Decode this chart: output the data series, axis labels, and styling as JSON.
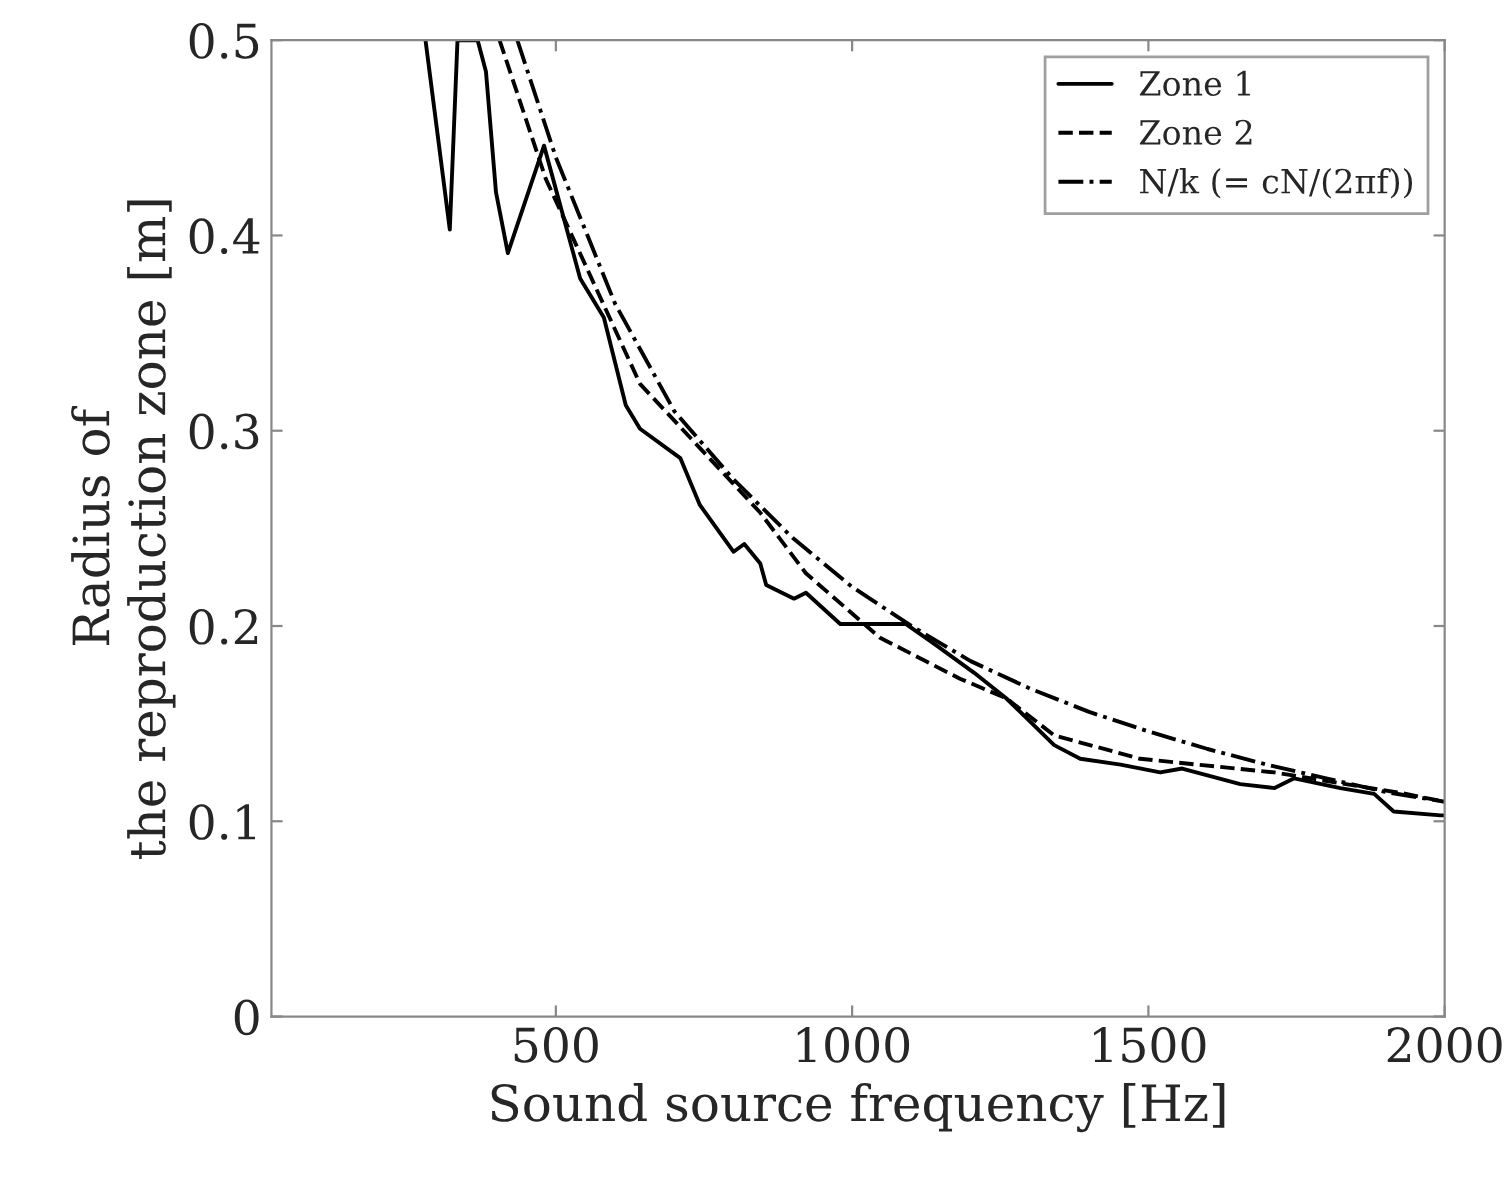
{
  "chart_data": {
    "type": "line",
    "xlabel": "Sound source frequency [Hz]",
    "ylabel": "Radius of\nthe reproduction zone [m]",
    "xlim": [
      20,
      2000
    ],
    "xticks": [
      500,
      1000,
      1500,
      2000
    ],
    "ylim": [
      0,
      0.5
    ],
    "yticks": [
      0,
      0.1,
      0.2,
      0.3,
      0.4,
      0.5
    ],
    "grid": false,
    "legend": "top right",
    "marker": "none",
    "series": [
      {
        "name": "Zone 1",
        "color": "#000000",
        "line_style": "solid",
        "x": [
          280,
          321,
          334,
          368,
          382,
          399,
          419,
          480,
          541,
          581,
          618,
          642,
          710,
          743,
          800,
          818,
          845,
          855,
          902,
          922,
          980,
          1091,
          1138,
          1206,
          1260,
          1341,
          1385,
          1453,
          1520,
          1557,
          1655,
          1713,
          1746,
          1824,
          1881,
          1914,
          1993,
          2000
        ],
        "values": [
          0.5,
          0.403,
          0.5,
          0.5,
          0.484,
          0.422,
          0.391,
          0.446,
          0.378,
          0.358,
          0.313,
          0.301,
          0.286,
          0.262,
          0.238,
          0.242,
          0.232,
          0.221,
          0.214,
          0.217,
          0.201,
          0.201,
          0.191,
          0.176,
          0.163,
          0.139,
          0.132,
          0.129,
          0.125,
          0.127,
          0.119,
          0.117,
          0.122,
          0.117,
          0.114,
          0.105,
          0.103,
          0.103
        ]
      },
      {
        "name": "Zone 2",
        "color": "#000000",
        "line_style": "dashed",
        "x": [
          405,
          483,
          642,
          845,
          922,
          1047,
          1182,
          1260,
          1341,
          1486,
          1713,
          1935,
          2000
        ],
        "values": [
          0.5,
          0.429,
          0.324,
          0.258,
          0.227,
          0.194,
          0.173,
          0.163,
          0.144,
          0.132,
          0.125,
          0.114,
          0.11
        ]
      },
      {
        "name": "N/k (= cN/(2πf))",
        "color": "#000000",
        "line_style": "dashdot",
        "x": [
          435,
          500,
          600,
          700,
          800,
          900,
          1000,
          1100,
          1200,
          1300,
          1400,
          1500,
          1600,
          1700,
          1800,
          1900,
          2000
        ],
        "values": [
          0.5,
          0.44,
          0.365,
          0.31,
          0.275,
          0.245,
          0.22,
          0.2,
          0.182,
          0.168,
          0.156,
          0.146,
          0.137,
          0.129,
          0.122,
          0.115,
          0.11
        ]
      }
    ]
  }
}
